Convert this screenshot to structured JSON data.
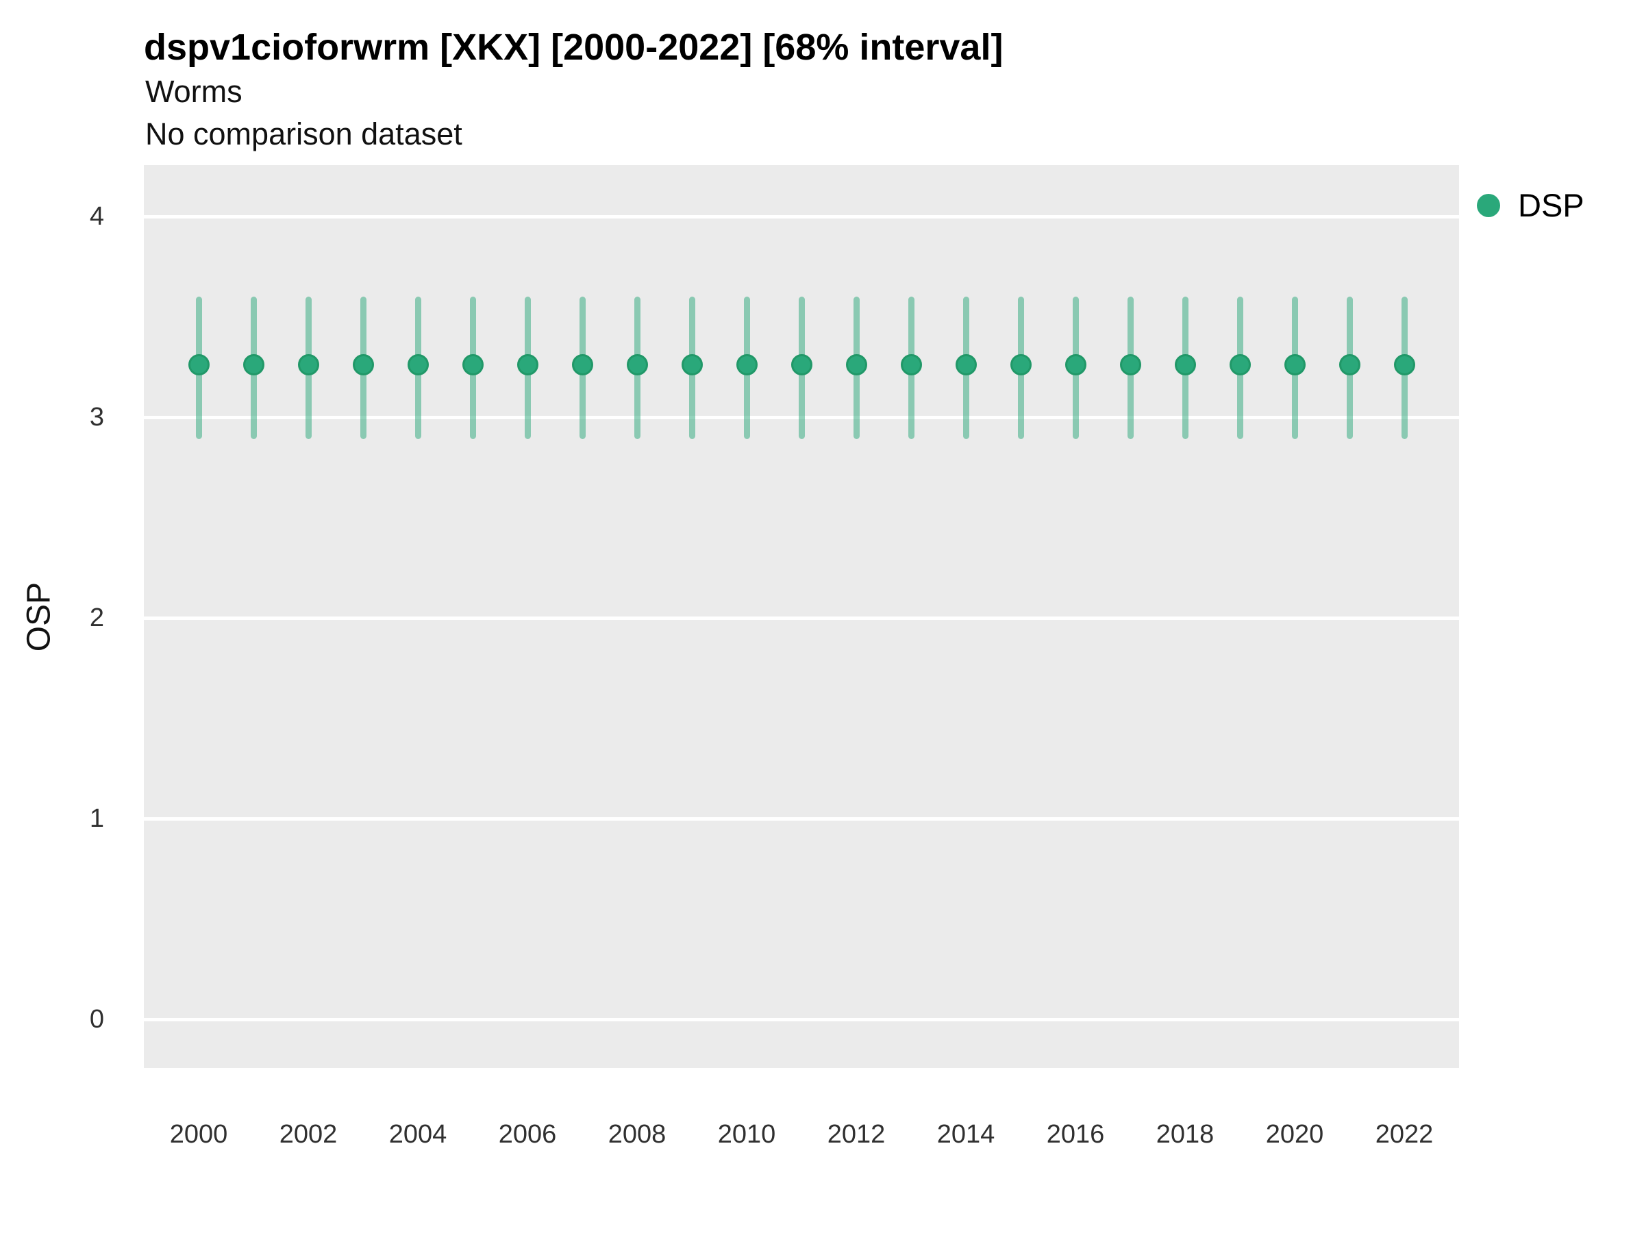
{
  "header": {
    "title": "dspv1cioforwrm [XKX] [2000-2022] [68% interval]",
    "subtitle": "Worms",
    "note": "No comparison dataset"
  },
  "axes": {
    "y_title": "OSP",
    "y_ticks": [
      {
        "label": "4",
        "value": 4
      },
      {
        "label": "3",
        "value": 3
      },
      {
        "label": "2",
        "value": 2
      },
      {
        "label": "1",
        "value": 1
      },
      {
        "label": "0",
        "value": 0
      }
    ],
    "x_ticks": [
      {
        "label": "2000",
        "value": 2000
      },
      {
        "label": "2002",
        "value": 2002
      },
      {
        "label": "2004",
        "value": 2004
      },
      {
        "label": "2006",
        "value": 2006
      },
      {
        "label": "2008",
        "value": 2008
      },
      {
        "label": "2010",
        "value": 2010
      },
      {
        "label": "2012",
        "value": 2012
      },
      {
        "label": "2014",
        "value": 2014
      },
      {
        "label": "2016",
        "value": 2016
      },
      {
        "label": "2018",
        "value": 2018
      },
      {
        "label": "2020",
        "value": 2020
      },
      {
        "label": "2022",
        "value": 2022
      }
    ]
  },
  "legend": {
    "items": [
      {
        "label": "DSP",
        "color": "#2aa87a"
      }
    ]
  },
  "colors": {
    "point_fill": "#2aa87a",
    "point_border": "#219868",
    "interval_line": "rgba(42, 168, 122, 0.5)",
    "panel_background": "#EBEBEB",
    "gridline": "#ffffff"
  },
  "chart_data": {
    "type": "scatter",
    "title": "dspv1cioforwrm [XKX] [2000-2022] [68% interval]",
    "subtitle": "Worms",
    "note": "No comparison dataset",
    "xlabel": "",
    "ylabel": "OSP",
    "ylim": [
      -0.25,
      4.25
    ],
    "xlim": [
      1999,
      2023
    ],
    "grid": "horizontal-major-only",
    "legend_position": "right-top",
    "interval_label": "68% interval",
    "x": [
      2000,
      2001,
      2002,
      2003,
      2004,
      2005,
      2006,
      2007,
      2008,
      2009,
      2010,
      2011,
      2012,
      2013,
      2014,
      2015,
      2016,
      2017,
      2018,
      2019,
      2020,
      2021,
      2022
    ],
    "series": [
      {
        "name": "DSP",
        "values": [
          3.26,
          3.26,
          3.26,
          3.26,
          3.26,
          3.26,
          3.26,
          3.26,
          3.26,
          3.26,
          3.26,
          3.26,
          3.26,
          3.26,
          3.26,
          3.26,
          3.26,
          3.26,
          3.26,
          3.26,
          3.26,
          3.26,
          3.26
        ],
        "lower": [
          2.89,
          2.89,
          2.89,
          2.89,
          2.89,
          2.89,
          2.89,
          2.89,
          2.89,
          2.89,
          2.89,
          2.89,
          2.89,
          2.89,
          2.89,
          2.89,
          2.89,
          2.89,
          2.89,
          2.89,
          2.89,
          2.89,
          2.89
        ],
        "upper": [
          3.6,
          3.6,
          3.6,
          3.6,
          3.6,
          3.6,
          3.6,
          3.6,
          3.6,
          3.6,
          3.6,
          3.6,
          3.6,
          3.6,
          3.6,
          3.6,
          3.6,
          3.6,
          3.6,
          3.6,
          3.6,
          3.6,
          3.6
        ]
      }
    ]
  }
}
